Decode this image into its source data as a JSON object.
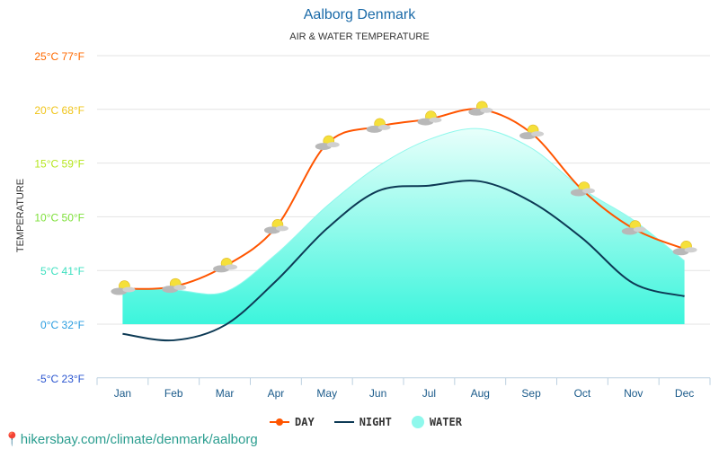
{
  "chart_data": {
    "type": "line",
    "title": "Aalborg Denmark",
    "subtitle": "AIR & WATER TEMPERATURE",
    "ylabel": "TEMPERATURE",
    "categories": [
      "Jan",
      "Feb",
      "Mar",
      "Apr",
      "May",
      "Jun",
      "Jul",
      "Aug",
      "Sep",
      "Oct",
      "Nov",
      "Dec"
    ],
    "yticks": [
      {
        "c": 25,
        "label": "25°C 77°F",
        "color": "#ff6a00"
      },
      {
        "c": 20,
        "label": "20°C 68°F",
        "color": "#f0c419"
      },
      {
        "c": 15,
        "label": "15°C 59°F",
        "color": "#b5e61d"
      },
      {
        "c": 10,
        "label": "10°C 50°F",
        "color": "#7ee03a"
      },
      {
        "c": 5,
        "label": "5°C 41°F",
        "color": "#3fe0c0"
      },
      {
        "c": 0,
        "label": "0°C 32°F",
        "color": "#2a9de0"
      },
      {
        "c": -5,
        "label": "-5°C 23°F",
        "color": "#2a55d0"
      }
    ],
    "ylim": [
      -5,
      25
    ],
    "grid": true,
    "legend_position": "bottom",
    "series": [
      {
        "name": "DAY",
        "color": "#ff5500",
        "values": [
          3.3,
          3.5,
          5.4,
          9.0,
          16.8,
          18.4,
          19.1,
          20.0,
          17.8,
          12.5,
          8.9,
          7.0
        ]
      },
      {
        "name": "NIGHT",
        "color": "#0d3a55",
        "values": [
          -0.9,
          -1.5,
          -0.1,
          4.0,
          8.9,
          12.4,
          12.9,
          13.3,
          11.4,
          8.0,
          3.8,
          2.6
        ]
      },
      {
        "name": "WATER",
        "color": "#40f5e0",
        "values": [
          3.3,
          3.2,
          3.0,
          6.5,
          11.0,
          14.7,
          17.2,
          18.2,
          16.4,
          12.6,
          9.7,
          5.9
        ]
      }
    ],
    "marker_icon": "partly-cloudy-icon"
  },
  "footer": "hikersbay.com/climate/denmark/aalborg"
}
